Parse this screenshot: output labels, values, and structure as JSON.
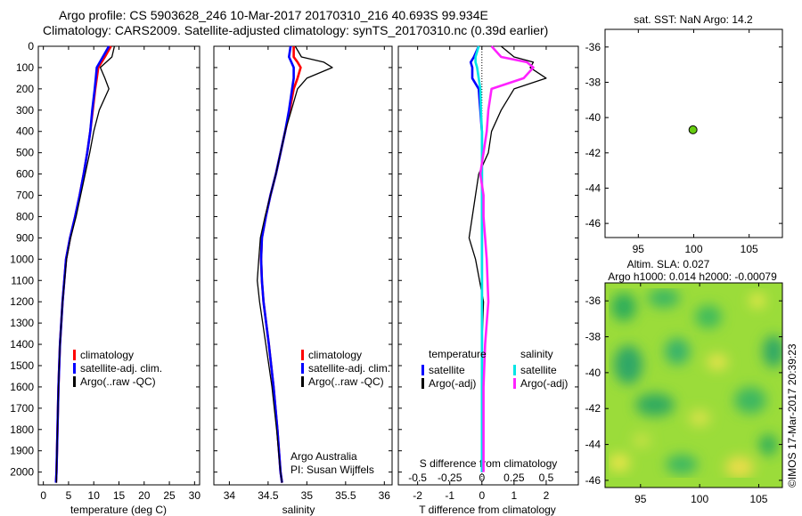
{
  "header": {
    "line1": "Argo profile: CS 5903628_246 10-Mar-2017 20170310_216 40.693S 99.934E",
    "line2": "Climatology: CARS2009. Satellite-adjusted climatology: synTS_20170310.nc (0.39d earlier)"
  },
  "copyright": "©IMOS 17-Mar-2017 20:39:23",
  "colors": {
    "climatology": "#ff0000",
    "satellite": "#0000ff",
    "argo": "#000000",
    "salinity_sat": "#00e5e5",
    "salinity_argo": "#ff22ff",
    "float_marker": "#66cc11"
  },
  "depth_axis": {
    "ylim": [
      0,
      2060
    ],
    "ticks": [
      0,
      100,
      200,
      300,
      400,
      500,
      600,
      700,
      800,
      900,
      1000,
      1100,
      1200,
      1300,
      1400,
      1500,
      1600,
      1700,
      1800,
      1900,
      2000
    ]
  },
  "chart_data": [
    {
      "type": "line",
      "id": "temperature",
      "xlabel": "temperature (deg C)",
      "xlim": [
        -1,
        31
      ],
      "xticks": [
        0,
        5,
        10,
        15,
        20,
        25,
        30
      ],
      "depth": [
        0,
        50,
        100,
        150,
        200,
        300,
        400,
        500,
        600,
        700,
        800,
        900,
        1000,
        1200,
        1400,
        1600,
        1800,
        2000,
        2050
      ],
      "series": [
        {
          "name": "climatology",
          "color": "#ff0000",
          "values": [
            13.4,
            12.2,
            10.9,
            10.6,
            10.3,
            9.8,
            9.3,
            8.7,
            8.0,
            7.2,
            6.3,
            5.3,
            4.5,
            3.8,
            3.3,
            3.0,
            2.8,
            2.6,
            2.5
          ]
        },
        {
          "name": "satellite-adj. clim.",
          "color": "#0000ff",
          "values": [
            13.0,
            11.8,
            10.6,
            10.4,
            10.2,
            9.7,
            9.3,
            8.7,
            8.0,
            7.2,
            6.3,
            5.3,
            4.5,
            3.8,
            3.3,
            3.0,
            2.8,
            2.6,
            2.5
          ]
        },
        {
          "name": "Argo(..raw -QC)",
          "color": "#000000",
          "values": [
            14.1,
            13.6,
            11.3,
            12.2,
            13.0,
            11.1,
            10.0,
            9.2,
            8.3,
            7.4,
            6.5,
            5.4,
            4.6,
            3.8,
            3.3,
            3.0,
            2.8,
            2.6,
            2.6
          ]
        }
      ],
      "legend": {
        "placement": "lower-left",
        "entries": [
          "climatology",
          "satellite-adj. clim.",
          "Argo(..raw -QC)"
        ]
      }
    },
    {
      "type": "line",
      "id": "salinity",
      "xlabel": "salinity",
      "xlim": [
        33.8,
        36.1
      ],
      "xticks": [
        34,
        34.5,
        35,
        35.5,
        36
      ],
      "depth": [
        0,
        50,
        75,
        100,
        150,
        200,
        300,
        400,
        500,
        600,
        700,
        800,
        900,
        1000,
        1100,
        1200,
        1400,
        1600,
        1800,
        2000,
        2050
      ],
      "series": [
        {
          "name": "climatology",
          "color": "#ff0000",
          "values": [
            34.83,
            34.83,
            34.88,
            34.92,
            34.88,
            34.83,
            34.78,
            34.72,
            34.66,
            34.6,
            34.53,
            34.47,
            34.42,
            34.41,
            34.42,
            34.44,
            34.51,
            34.57,
            34.62,
            34.66,
            34.68
          ]
        },
        {
          "name": "satellite-adj. clim.",
          "color": "#0000ff",
          "values": [
            34.79,
            34.77,
            34.8,
            34.83,
            34.83,
            34.81,
            34.77,
            34.72,
            34.66,
            34.6,
            34.53,
            34.47,
            34.42,
            34.41,
            34.42,
            34.44,
            34.51,
            34.57,
            34.62,
            34.66,
            34.68
          ]
        },
        {
          "name": "Argo(..raw -QC)",
          "color": "#000000",
          "values": [
            34.85,
            34.93,
            35.22,
            35.33,
            35.0,
            34.88,
            34.8,
            34.72,
            34.66,
            34.6,
            34.53,
            34.46,
            34.4,
            34.38,
            34.36,
            34.39,
            34.47,
            34.55,
            34.61,
            34.66,
            34.68
          ]
        }
      ],
      "legend": {
        "placement": "lower-left",
        "entries": [
          "climatology",
          "satellite-adj. clim.",
          "Argo(..raw -QC)"
        ]
      },
      "annotations": [
        "Argo Australia",
        "PI: Susan Wijffels"
      ]
    },
    {
      "type": "line",
      "id": "difference",
      "xlabel": "T difference from climatology",
      "xlim": [
        -2.6,
        3.0
      ],
      "xticks": [
        -2,
        -1,
        0,
        1,
        2
      ],
      "top_xlabel": "S difference from climatology",
      "top_xticks": [
        "-0.5",
        "-0.25",
        "0",
        "0.25",
        "0.5"
      ],
      "depth": [
        0,
        50,
        75,
        100,
        150,
        200,
        300,
        400,
        500,
        600,
        700,
        800,
        900,
        1000,
        1200,
        1400,
        1600,
        1800,
        2000
      ],
      "series": [
        {
          "name": "temperature satellite",
          "color": "#0000ff",
          "values": [
            -0.1,
            -0.25,
            -0.35,
            -0.3,
            -0.3,
            -0.1,
            -0.05,
            0,
            0,
            0,
            0,
            0,
            0,
            0,
            0,
            0,
            0,
            0,
            0
          ]
        },
        {
          "name": "temperature Argo(-adj)",
          "color": "#000000",
          "values": [
            0.6,
            1.0,
            1.6,
            1.5,
            2.0,
            1.0,
            0.6,
            0.3,
            0.2,
            -0.1,
            -0.2,
            -0.3,
            -0.4,
            -0.2,
            0.05,
            0,
            0,
            0,
            0
          ]
        },
        {
          "name": "salinity satellite",
          "color": "#00e5e5",
          "values": [
            -0.1,
            -0.2,
            -0.2,
            -0.15,
            -0.1,
            -0.05,
            -0.03,
            0,
            0,
            0,
            0,
            0,
            0,
            0,
            0,
            0,
            0,
            0,
            0
          ]
        },
        {
          "name": "salinity Argo(-adj)",
          "color": "#ff22ff",
          "values": [
            0.3,
            0.6,
            1.4,
            1.6,
            1.3,
            0.3,
            0.2,
            0.15,
            0.05,
            -0.05,
            0.05,
            0.05,
            0.1,
            0.15,
            0.2,
            0.1,
            0.05,
            0.05,
            0.05
          ]
        }
      ],
      "legend": {
        "placement": "lower-center",
        "headers": [
          "temperature",
          "salinity"
        ],
        "entries": [
          "satellite",
          "Argo(-adj)",
          "satellite",
          "Argo(-adj)"
        ]
      }
    },
    {
      "type": "scatter",
      "id": "location-sst",
      "title": "sat. SST: NaN Argo: 14.2",
      "xlim": [
        92,
        108
      ],
      "ylim": [
        -46.8,
        -35
      ],
      "xticks": [
        95,
        100,
        105
      ],
      "yticks": [
        -36,
        -38,
        -40,
        -42,
        -44,
        -46
      ],
      "points": [
        {
          "x": 99.934,
          "y": -40.693
        }
      ]
    },
    {
      "type": "heatmap",
      "id": "altimetry",
      "title": "Altim. SLA: 0.027",
      "subtitle": "Argo h1000: 0.014 h2000: -0.00079",
      "xlim": [
        92,
        107
      ],
      "ylim": [
        -46.4,
        -35
      ],
      "xticks": [
        95,
        100,
        105
      ],
      "yticks": [
        -36,
        -38,
        -40,
        -42,
        -44,
        -46
      ]
    }
  ]
}
